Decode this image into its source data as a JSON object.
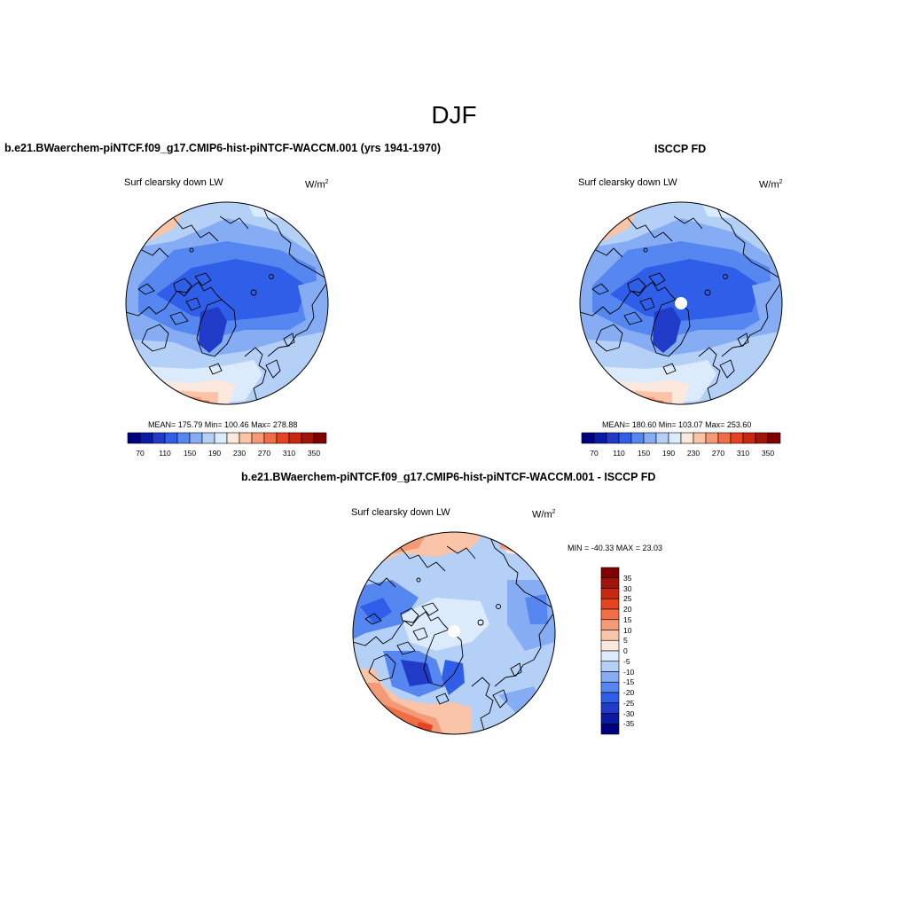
{
  "figure": {
    "title": "DJF"
  },
  "panels": [
    {
      "id": "model",
      "title": "b.e21.BWaerchem-piNTCF.f09_g17.CMIP6-hist-piNTCF-WACCM.001 (yrs 1941-1970)",
      "variable": "Surf clearsky down LW",
      "units_base": "W/m",
      "units_exp": "2",
      "stats": "MEAN= 175.79  Min= 100.46  Max= 278.88",
      "colorbar_labels": [
        "70",
        "110",
        "150",
        "190",
        "230",
        "270",
        "310",
        "350"
      ],
      "colorbar_colors": [
        "#00007f",
        "#0a1aa3",
        "#1f3bc7",
        "#2f5ee8",
        "#5687f0",
        "#86adf3",
        "#b4d0f7",
        "#dcebfb",
        "#fde8dd",
        "#f9c4a8",
        "#f59a76",
        "#f06e45",
        "#e64320",
        "#c8290f",
        "#a01508",
        "#7f0000"
      ]
    },
    {
      "id": "obs",
      "title": "ISCCP FD",
      "variable": "Surf clearsky down LW",
      "units_base": "W/m",
      "units_exp": "2",
      "stats": "MEAN= 180.60  Min= 103.07  Max= 253.60",
      "colorbar_labels": [
        "70",
        "110",
        "150",
        "190",
        "230",
        "270",
        "310",
        "350"
      ],
      "colorbar_colors": [
        "#00007f",
        "#0a1aa3",
        "#1f3bc7",
        "#2f5ee8",
        "#5687f0",
        "#86adf3",
        "#b4d0f7",
        "#dcebfb",
        "#fde8dd",
        "#f9c4a8",
        "#f59a76",
        "#f06e45",
        "#e64320",
        "#c8290f",
        "#a01508",
        "#7f0000"
      ]
    },
    {
      "id": "diff",
      "title": "b.e21.BWaerchem-piNTCF.f09_g17.CMIP6-hist-piNTCF-WACCM.001 - ISCCP FD",
      "variable": "Surf clearsky down LW",
      "units_base": "W/m",
      "units_exp": "2",
      "stats": "MIN = -40.33 MAX =  23.03",
      "colorbar_labels": [
        "35",
        "30",
        "25",
        "20",
        "15",
        "10",
        "5",
        "0",
        "-5",
        "-10",
        "-15",
        "-20",
        "-25",
        "-30",
        "-35"
      ],
      "colorbar_colors": [
        "#7f0000",
        "#a01508",
        "#c8290f",
        "#e64320",
        "#f06e45",
        "#f59a76",
        "#f9c4a8",
        "#fde8dd",
        "#dcebfb",
        "#b4d0f7",
        "#86adf3",
        "#5687f0",
        "#2f5ee8",
        "#1f3bc7",
        "#0a1aa3",
        "#00007f"
      ]
    }
  ],
  "map_colors": {
    "deep_blue": "#1f3bc7",
    "blue": "#2f5ee8",
    "mid_blue": "#5687f0",
    "light_blue": "#86adf3",
    "pale_blue": "#b4d0f7",
    "very_pale_blue": "#dcebfb",
    "pale_orange": "#f9c4a8",
    "orange": "#f59a76",
    "red_orange": "#f06e45",
    "red": "#e64320"
  }
}
